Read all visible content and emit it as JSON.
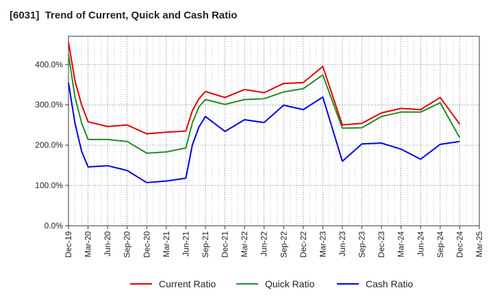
{
  "chart_data": {
    "type": "line",
    "title": "[6031]  Trend of Current, Quick and Cash Ratio",
    "xlabel": "",
    "ylabel": "",
    "ylim": [
      0,
      470
    ],
    "yticks": [
      0,
      100,
      200,
      300,
      400
    ],
    "ytick_labels": [
      "0.0%",
      "100.0%",
      "200.0%",
      "300.0%",
      "400.0%"
    ],
    "x_ticks": [
      "Dec-19",
      "Mar-20",
      "Jun-20",
      "Sep-20",
      "Dec-20",
      "Mar-21",
      "Jun-21",
      "Sep-21",
      "Dec-21",
      "Mar-22",
      "Jun-22",
      "Sep-22",
      "Dec-22",
      "Mar-23",
      "Jun-23",
      "Sep-23",
      "Dec-23",
      "Mar-24",
      "Jun-24",
      "Sep-24",
      "Dec-24",
      "Mar-25"
    ],
    "grid": true,
    "legend_position": "bottom",
    "series": [
      {
        "name": "Current Ratio",
        "color": "#e00000",
        "points": [
          [
            0,
            455
          ],
          [
            0.33,
            360
          ],
          [
            0.67,
            300
          ],
          [
            1,
            258
          ],
          [
            2,
            246
          ],
          [
            3,
            250
          ],
          [
            4,
            228
          ],
          [
            5,
            232
          ],
          [
            6,
            235
          ],
          [
            6.33,
            285
          ],
          [
            6.67,
            315
          ],
          [
            7,
            333
          ],
          [
            8,
            318
          ],
          [
            9,
            338
          ],
          [
            10,
            330
          ],
          [
            11,
            353
          ],
          [
            12,
            355
          ],
          [
            13,
            395
          ],
          [
            14,
            250
          ],
          [
            15,
            254
          ],
          [
            16,
            280
          ],
          [
            17,
            291
          ],
          [
            18,
            288
          ],
          [
            19,
            318
          ],
          [
            20,
            252
          ]
        ]
      },
      {
        "name": "Quick Ratio",
        "color": "#228b22",
        "points": [
          [
            0,
            425
          ],
          [
            0.33,
            320
          ],
          [
            0.67,
            255
          ],
          [
            1,
            214
          ],
          [
            2,
            214
          ],
          [
            3,
            209
          ],
          [
            4,
            180
          ],
          [
            5,
            183
          ],
          [
            6,
            193
          ],
          [
            6.33,
            255
          ],
          [
            6.67,
            295
          ],
          [
            7,
            313
          ],
          [
            8,
            301
          ],
          [
            9,
            313
          ],
          [
            10,
            315
          ],
          [
            11,
            332
          ],
          [
            12,
            340
          ],
          [
            13,
            374
          ],
          [
            14,
            242
          ],
          [
            15,
            243
          ],
          [
            16,
            271
          ],
          [
            17,
            282
          ],
          [
            18,
            282
          ],
          [
            19,
            305
          ],
          [
            20,
            218
          ]
        ]
      },
      {
        "name": "Cash Ratio",
        "color": "#0000dd",
        "points": [
          [
            0,
            355
          ],
          [
            0.33,
            255
          ],
          [
            0.67,
            185
          ],
          [
            1,
            146
          ],
          [
            2,
            149
          ],
          [
            3,
            137
          ],
          [
            4,
            107
          ],
          [
            5,
            111
          ],
          [
            6,
            118
          ],
          [
            6.33,
            200
          ],
          [
            6.67,
            245
          ],
          [
            7,
            271
          ],
          [
            8,
            234
          ],
          [
            9,
            263
          ],
          [
            10,
            256
          ],
          [
            11,
            299
          ],
          [
            12,
            288
          ],
          [
            13,
            319
          ],
          [
            14,
            160
          ],
          [
            15,
            203
          ],
          [
            16,
            205
          ],
          [
            17,
            190
          ],
          [
            18,
            165
          ],
          [
            19,
            202
          ],
          [
            20,
            209
          ]
        ]
      }
    ]
  }
}
